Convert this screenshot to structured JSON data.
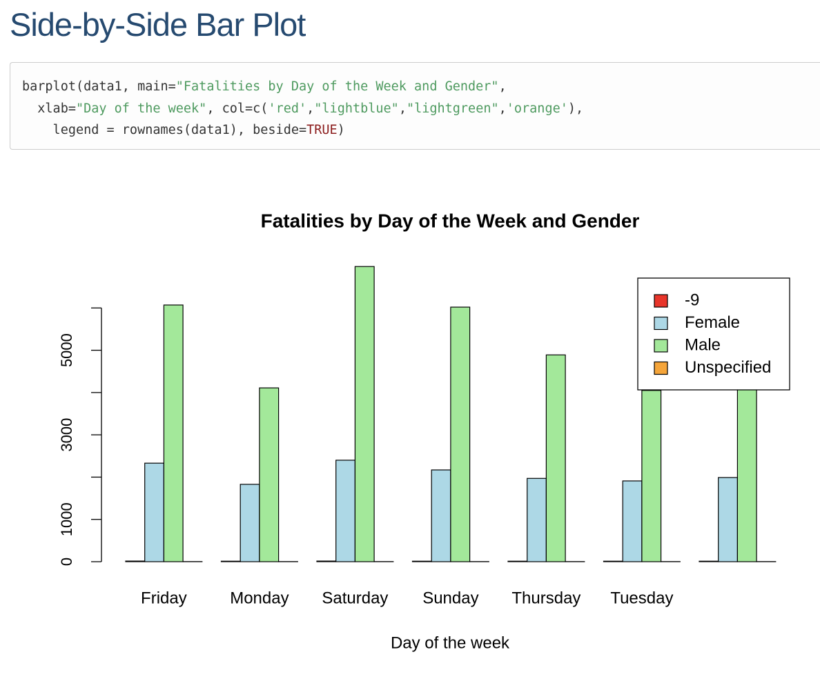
{
  "header": {
    "title": "Side-by-Side Bar Plot"
  },
  "code": {
    "lines": [
      [
        {
          "text": "barplot(data1, main="
        },
        {
          "text": "\"Fatalities by Day of the Week and Gender\"",
          "color": "#4e9a5f"
        },
        {
          "text": ","
        }
      ],
      [
        {
          "text": "  xlab="
        },
        {
          "text": "\"Day of the week\"",
          "color": "#4e9a5f"
        },
        {
          "text": ", col=c("
        },
        {
          "text": "'red'",
          "color": "#4e9a5f"
        },
        {
          "text": ","
        },
        {
          "text": "\"lightblue\"",
          "color": "#4e9a5f"
        },
        {
          "text": ","
        },
        {
          "text": "\"lightgreen\"",
          "color": "#4e9a5f"
        },
        {
          "text": ","
        },
        {
          "text": "'orange'",
          "color": "#4e9a5f"
        },
        {
          "text": "),"
        }
      ],
      [
        {
          "text": "    legend = rownames(data1), beside="
        },
        {
          "text": "TRUE",
          "color": "#8b1c1c"
        },
        {
          "text": ")"
        }
      ]
    ]
  },
  "chart_data": {
    "type": "bar",
    "title": "Fatalities by Day of the Week and Gender",
    "x_label": "Day of the week",
    "categories": [
      "Friday",
      "Monday",
      "Saturday",
      "Sunday",
      "Thursday",
      "Tuesday",
      null
    ],
    "series": [
      {
        "name": "-9",
        "color": "#e8352a",
        "values": [
          15,
          12,
          15,
          12,
          12,
          12,
          12
        ]
      },
      {
        "name": "Female",
        "color": "#add8e6",
        "values": [
          2330,
          1830,
          2400,
          2170,
          1970,
          1910,
          1990
        ]
      },
      {
        "name": "Male",
        "color": "#a3e89a",
        "values": [
          6070,
          4110,
          6980,
          6020,
          4890,
          4050,
          4300
        ]
      },
      {
        "name": "Unspecified",
        "color": "#f5a53a",
        "values": [
          3,
          3,
          3,
          3,
          3,
          3,
          3
        ]
      }
    ],
    "ylim": [
      0,
      7000
    ],
    "yticks": [
      0,
      1000,
      {
        "value": 2000,
        "label": null
      },
      3000,
      {
        "value": 4000,
        "label": null
      },
      5000,
      {
        "value": 6000,
        "label": null
      }
    ],
    "legend": "top-right",
    "grid": false
  }
}
